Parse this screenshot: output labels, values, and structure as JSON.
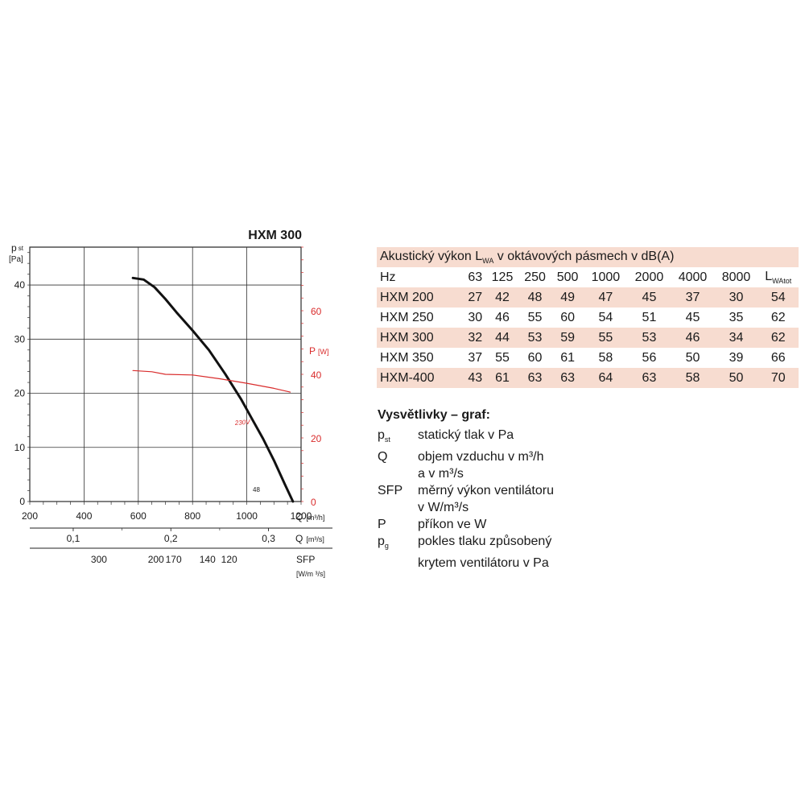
{
  "chart_data": {
    "type": "line",
    "title": "HXM 300",
    "ylabel_main": "p",
    "ylabel_main_sub": "st",
    "ylabel_main_unit": "[Pa]",
    "ylabel_right": "P",
    "ylabel_right_unit": "[W]",
    "xlabel": "Q",
    "xlabel_unit": "[m³/h]",
    "xlabel2": "Q",
    "xlabel2_unit": "[m³/s]",
    "xlabel3": "SFP",
    "xlabel3_unit": "[W/m ³/s]",
    "xlim": [
      200,
      1200
    ],
    "ylim": [
      0,
      47
    ],
    "ylim_right": [
      0,
      80
    ],
    "x_ticks": [
      "200",
      "400",
      "600",
      "800",
      "1000",
      "1200"
    ],
    "y_ticks": [
      "0",
      "10",
      "20",
      "30",
      "40"
    ],
    "y_right_ticks": [
      "0",
      "20",
      "40",
      "60"
    ],
    "q_ms_ticks": [
      "0,1",
      "0,2",
      "0,3"
    ],
    "sfp_ticks": [
      "300",
      "200",
      "170",
      "140",
      "120"
    ],
    "grid": true,
    "series": [
      {
        "name": "",
        "axis": "left",
        "color": "#111111",
        "x": [
          580,
          620,
          660,
          700,
          740,
          800,
          860,
          920,
          980,
          1020,
          1060,
          1100,
          1140,
          1170
        ],
        "y": [
          41.3,
          41.0,
          39.6,
          37.4,
          35.0,
          31.6,
          28.0,
          23.6,
          18.8,
          15.2,
          11.6,
          7.6,
          3.2,
          0.0
        ]
      },
      {
        "name": "230V",
        "axis": "right",
        "color": "#d92c2c",
        "x": [
          580,
          650,
          700,
          800,
          900,
          1000,
          1100,
          1160
        ],
        "y": [
          41.2,
          40.8,
          40.0,
          39.8,
          38.6,
          37.2,
          35.6,
          34.4
        ]
      }
    ],
    "annotations": [
      "230V",
      "48"
    ]
  },
  "table": {
    "title_pre": "Akustický výkon L",
    "title_sub": "WA",
    "title_post": " v oktávových pásmech v dB(A)",
    "header": {
      "first": "Hz",
      "bands": [
        "63",
        "125",
        "250",
        "500",
        "1000",
        "2000",
        "4000",
        "8000"
      ],
      "last_main": "L",
      "last_sub": "WAtot"
    },
    "rows": [
      {
        "model": "HXM 200",
        "values": [
          "27",
          "42",
          "48",
          "49",
          "47",
          "45",
          "37",
          "30",
          "54"
        ]
      },
      {
        "model": "HXM 250",
        "values": [
          "30",
          "46",
          "55",
          "60",
          "54",
          "51",
          "45",
          "35",
          "62"
        ]
      },
      {
        "model": "HXM 300",
        "values": [
          "32",
          "44",
          "53",
          "59",
          "55",
          "53",
          "46",
          "34",
          "62"
        ]
      },
      {
        "model": "HXM 350",
        "values": [
          "37",
          "55",
          "60",
          "61",
          "58",
          "56",
          "50",
          "39",
          "66"
        ]
      },
      {
        "model": "HXM-400",
        "values": [
          "43",
          "61",
          "63",
          "63",
          "64",
          "63",
          "58",
          "50",
          "70"
        ]
      }
    ]
  },
  "legend": {
    "heading": "Vysvětlivky – graf:",
    "items": [
      {
        "sym": "p",
        "sym_sub": "st",
        "lines": [
          "statický tlak v Pa"
        ]
      },
      {
        "sym": "Q",
        "sym_sub": "",
        "lines": [
          "objem vzduchu v m³/h",
          "a v m³/s"
        ]
      },
      {
        "sym": "SFP",
        "sym_sub": "",
        "lines": [
          "měrný výkon ventilátoru",
          "v W/m³/s"
        ]
      },
      {
        "sym": "P",
        "sym_sub": "",
        "lines": [
          "příkon ve W"
        ]
      },
      {
        "sym": "p",
        "sym_sub": "g",
        "lines": [
          "pokles tlaku způsobený",
          "krytem ventilátoru v Pa"
        ]
      }
    ]
  },
  "colors": {
    "curve": "#111111",
    "power": "#d92c2c",
    "row_shade": "#f7dcd0",
    "grid": "#222222"
  }
}
